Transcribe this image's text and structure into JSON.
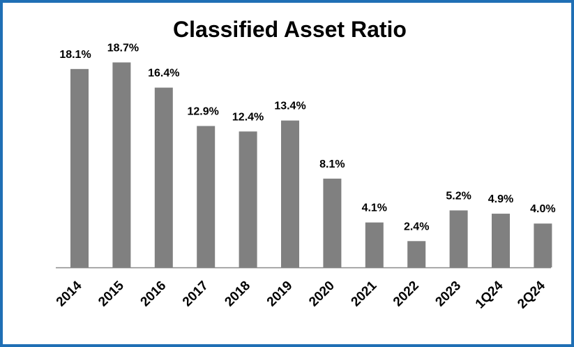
{
  "chart_data": {
    "type": "bar",
    "title": "Classified Asset Ratio",
    "categories": [
      "2014",
      "2015",
      "2016",
      "2017",
      "2018",
      "2019",
      "2020",
      "2021",
      "2022",
      "2023",
      "1Q24",
      "2Q24"
    ],
    "values": [
      18.1,
      18.7,
      16.4,
      12.9,
      12.4,
      13.4,
      8.1,
      4.1,
      2.4,
      5.2,
      4.9,
      4.0
    ],
    "value_labels": [
      "18.1%",
      "18.7%",
      "16.4%",
      "12.9%",
      "12.4%",
      "13.4%",
      "8.1%",
      "4.1%",
      "2.4%",
      "5.2%",
      "4.9%",
      "4.0%"
    ],
    "ylim": [
      0,
      20
    ],
    "xlabel": "",
    "ylabel": "",
    "grid": false,
    "bar_color": "#808080",
    "frame_color": "#1f6fb5"
  }
}
